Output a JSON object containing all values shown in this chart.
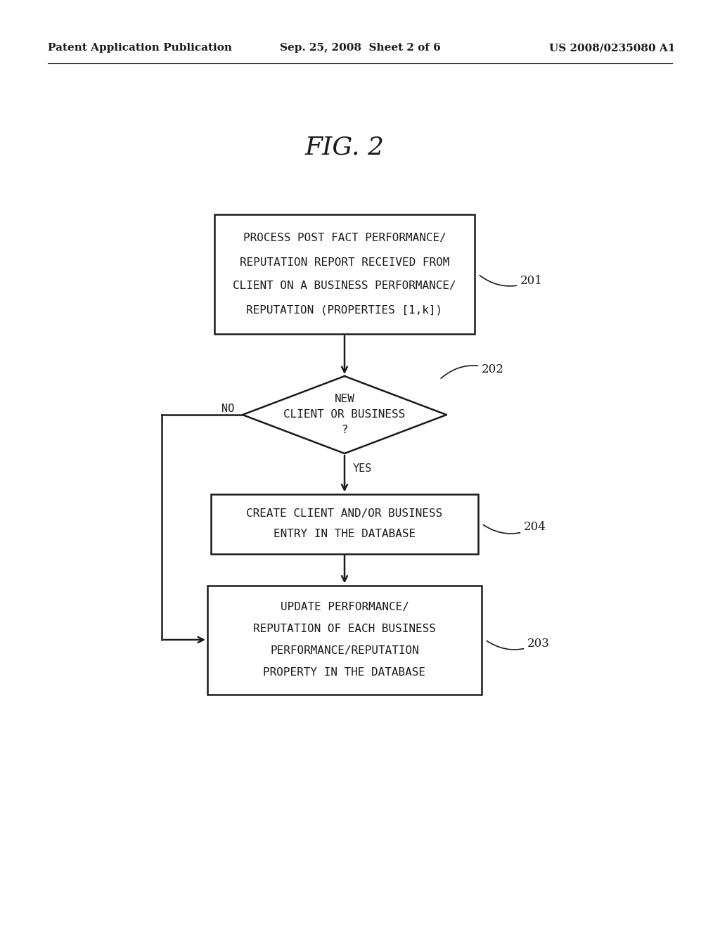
{
  "background_color": "#ffffff",
  "header_left": "Patent Application Publication",
  "header_center": "Sep. 25, 2008  Sheet 2 of 6",
  "header_right": "US 2008/0235080 A1",
  "fig_title": "FIG. 2",
  "box201_lines": [
    "PROCESS POST FACT PERFORMANCE/",
    "REPUTATION REPORT RECEIVED FROM",
    "CLIENT ON A BUSINESS PERFORMANCE/",
    "REPUTATION (PROPERTIES [1,k])"
  ],
  "box201_label": "201",
  "diamond202_lines": [
    "NEW",
    "CLIENT OR BUSINESS",
    "?"
  ],
  "diamond202_label": "202",
  "diamond202_no": "NO",
  "diamond202_yes": "YES",
  "box204_lines": [
    "CREATE CLIENT AND/OR BUSINESS",
    "ENTRY IN THE DATABASE"
  ],
  "box204_label": "204",
  "box203_lines": [
    "UPDATE PERFORMANCE/",
    "REPUTATION OF EACH BUSINESS",
    "PERFORMANCE/REPUTATION",
    "PROPERTY IN THE DATABASE"
  ],
  "box203_label": "203",
  "text_color": "#1a1a1a",
  "line_color": "#1a1a1a"
}
